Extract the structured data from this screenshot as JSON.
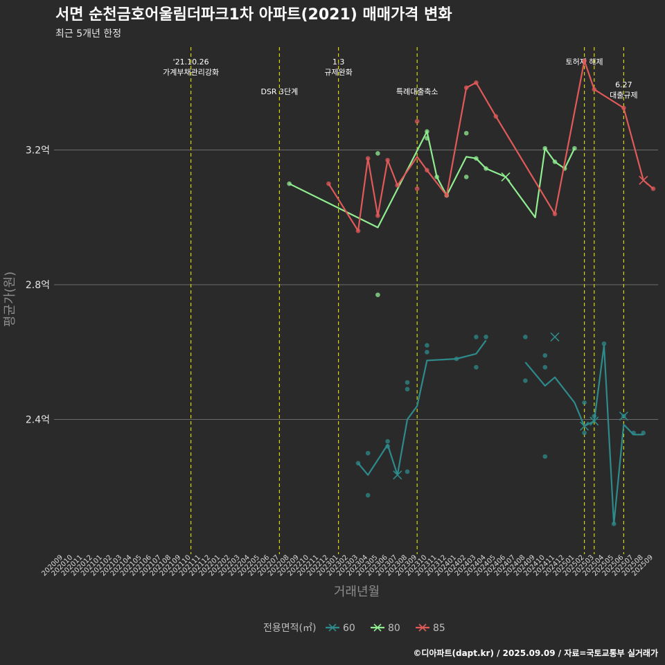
{
  "chart_data": {
    "type": "line",
    "title": "서면 순천금호어울림더파크1차 아파트(2021) 매매가격 변화",
    "subtitle": "최근 5개년 한정",
    "xlabel": "거래년월",
    "ylabel": "평균가(원)",
    "caption": "©디아파트(dapt.kr) / 2025.09.09 / 자료=국토교통부 실거래가",
    "x_ticks": [
      "202009",
      "202010",
      "202011",
      "202012",
      "202101",
      "202102",
      "202103",
      "202104",
      "202105",
      "202106",
      "202107",
      "202108",
      "202109",
      "202110",
      "202111",
      "202112",
      "202201",
      "202202",
      "202203",
      "202204",
      "202205",
      "202206",
      "202207",
      "202208",
      "202209",
      "202210",
      "202211",
      "202212",
      "202301",
      "202302",
      "202303",
      "202304",
      "202305",
      "202306",
      "202307",
      "202308",
      "202309",
      "202310",
      "202311",
      "202312",
      "202401",
      "202402",
      "202403",
      "202404",
      "202405",
      "202406",
      "202407",
      "202408",
      "202409",
      "202410",
      "202411",
      "202412",
      "202501",
      "202502",
      "202503",
      "202504",
      "202505",
      "202506",
      "202507",
      "202508",
      "202509"
    ],
    "y_ticks": [
      2.4,
      2.8,
      3.2
    ],
    "y_tick_labels": [
      "2.4억",
      "2.8억",
      "3.2억"
    ],
    "ylim": [
      2.0,
      3.45
    ],
    "grid": true,
    "legend": {
      "position": "bottom",
      "title": "전용면적(㎡)",
      "items": [
        "60",
        "80",
        "85"
      ]
    },
    "events": [
      {
        "x": "202110",
        "label": "'21.10.26\n가계부채관리강화",
        "row": 1
      },
      {
        "x": "202207",
        "label": "DSR 3단계",
        "row": 2
      },
      {
        "x": "202301",
        "label": "1.3\n규제완화",
        "row": 1
      },
      {
        "x": "202309",
        "label": "특례대출축소",
        "row": 2
      },
      {
        "x": "202502",
        "label": "토허제 해제",
        "row": 1
      },
      {
        "x": "202503",
        "label": "",
        "row": 1
      },
      {
        "x": "202506",
        "label": "6.27\n대출규제",
        "row": 3
      }
    ],
    "series": [
      {
        "name": "60",
        "color": "#2e8b8b",
        "segments": [
          [
            [
              "202303",
              2.27
            ],
            [
              "202304",
              2.235
            ],
            [
              "202306",
              2.325
            ],
            [
              "202307",
              2.235
            ],
            [
              "202308",
              2.4
            ],
            [
              "202309",
              2.44
            ],
            [
              "202310",
              2.575
            ],
            [
              "202401",
              2.58
            ],
            [
              "202403",
              2.595
            ],
            [
              "202404",
              2.635
            ]
          ],
          [
            [
              "202408",
              2.57
            ],
            [
              "202410",
              2.5
            ],
            [
              "202411",
              2.525
            ],
            [
              "202501",
              2.45
            ],
            [
              "202502",
              2.38
            ],
            [
              "202503",
              2.395
            ],
            [
              "202504",
              2.62
            ],
            [
              "202505",
              2.09
            ],
            [
              "202506",
              2.385
            ],
            [
              "202507",
              2.355
            ],
            [
              "202508",
              2.355
            ]
          ]
        ],
        "points": [
          [
            "202303",
            2.27
          ],
          [
            "202304",
            2.3
          ],
          [
            "202304",
            2.175
          ],
          [
            "202306",
            2.335
          ],
          [
            "202306",
            2.32
          ],
          [
            "202308",
            2.51
          ],
          [
            "202308",
            2.49
          ],
          [
            "202308",
            2.245
          ],
          [
            "202310",
            2.62
          ],
          [
            "202310",
            2.6
          ],
          [
            "202401",
            2.58
          ],
          [
            "202403",
            2.645
          ],
          [
            "202403",
            2.555
          ],
          [
            "202404",
            2.645
          ],
          [
            "202408",
            2.645
          ],
          [
            "202408",
            2.515
          ],
          [
            "202410",
            2.59
          ],
          [
            "202410",
            2.555
          ],
          [
            "202410",
            2.29
          ],
          [
            "202502",
            2.45
          ],
          [
            "202502",
            2.36
          ],
          [
            "202503",
            2.41
          ],
          [
            "202504",
            2.625
          ],
          [
            "202505",
            2.09
          ],
          [
            "202506",
            2.41
          ],
          [
            "202507",
            2.36
          ],
          [
            "202508",
            2.36
          ]
        ],
        "crosses": [
          [
            "202307",
            2.235
          ],
          [
            "202411",
            2.645
          ],
          [
            "202502",
            2.38
          ],
          [
            "202503",
            2.395
          ],
          [
            "202506",
            2.41
          ]
        ]
      },
      {
        "name": "80",
        "color": "#90ee90",
        "segments": [
          [
            [
              "202208",
              3.1
            ],
            [
              "202305",
              2.97
            ],
            [
              "202310",
              3.255
            ],
            [
              "202311",
              3.12
            ],
            [
              "202312",
              3.065
            ],
            [
              "202402",
              3.18
            ],
            [
              "202403",
              3.175
            ],
            [
              "202404",
              3.145
            ],
            [
              "202406",
              3.12
            ],
            [
              "202409",
              3.0
            ],
            [
              "202410",
              3.205
            ],
            [
              "202411",
              3.165
            ],
            [
              "202412",
              3.145
            ],
            [
              "202501",
              3.205
            ]
          ]
        ],
        "points": [
          [
            "202208",
            3.1
          ],
          [
            "202305",
            3.19
          ],
          [
            "202305",
            2.77
          ],
          [
            "202310",
            3.255
          ],
          [
            "202310",
            3.235
          ],
          [
            "202311",
            3.12
          ],
          [
            "202312",
            3.065
          ],
          [
            "202402",
            3.25
          ],
          [
            "202402",
            3.12
          ],
          [
            "202403",
            3.175
          ],
          [
            "202404",
            3.145
          ],
          [
            "202410",
            3.205
          ],
          [
            "202411",
            3.165
          ],
          [
            "202412",
            3.145
          ],
          [
            "202501",
            3.205
          ]
        ],
        "crosses": [
          [
            "202406",
            3.12
          ]
        ]
      },
      {
        "name": "85",
        "color": "#e05a5a",
        "segments": [
          [
            [
              "202212",
              3.1
            ],
            [
              "202303",
              2.96
            ],
            [
              "202304",
              3.175
            ],
            [
              "202305",
              3.005
            ],
            [
              "202306",
              3.17
            ],
            [
              "202307",
              3.095
            ],
            [
              "202309",
              3.18
            ],
            [
              "202310",
              3.14
            ],
            [
              "202312",
              3.065
            ],
            [
              "202402",
              3.385
            ],
            [
              "202403",
              3.4
            ],
            [
              "202405",
              3.3
            ],
            [
              "202411",
              3.01
            ],
            [
              "202502",
              3.465
            ],
            [
              "202503",
              3.38
            ],
            [
              "202506",
              3.325
            ],
            [
              "202508",
              3.11
            ],
            [
              "202509",
              3.085
            ]
          ]
        ],
        "points": [
          [
            "202212",
            3.1
          ],
          [
            "202303",
            2.96
          ],
          [
            "202304",
            3.175
          ],
          [
            "202305",
            3.005
          ],
          [
            "202306",
            3.17
          ],
          [
            "202307",
            3.095
          ],
          [
            "202309",
            3.285
          ],
          [
            "202309",
            3.085
          ],
          [
            "202310",
            3.14
          ],
          [
            "202312",
            3.065
          ],
          [
            "202402",
            3.385
          ],
          [
            "202403",
            3.4
          ],
          [
            "202405",
            3.3
          ],
          [
            "202411",
            3.01
          ],
          [
            "202502",
            3.465
          ],
          [
            "202503",
            3.38
          ],
          [
            "202506",
            3.325
          ],
          [
            "202509",
            3.085
          ]
        ],
        "crosses": [
          [
            "202508",
            3.11
          ]
        ]
      }
    ]
  }
}
